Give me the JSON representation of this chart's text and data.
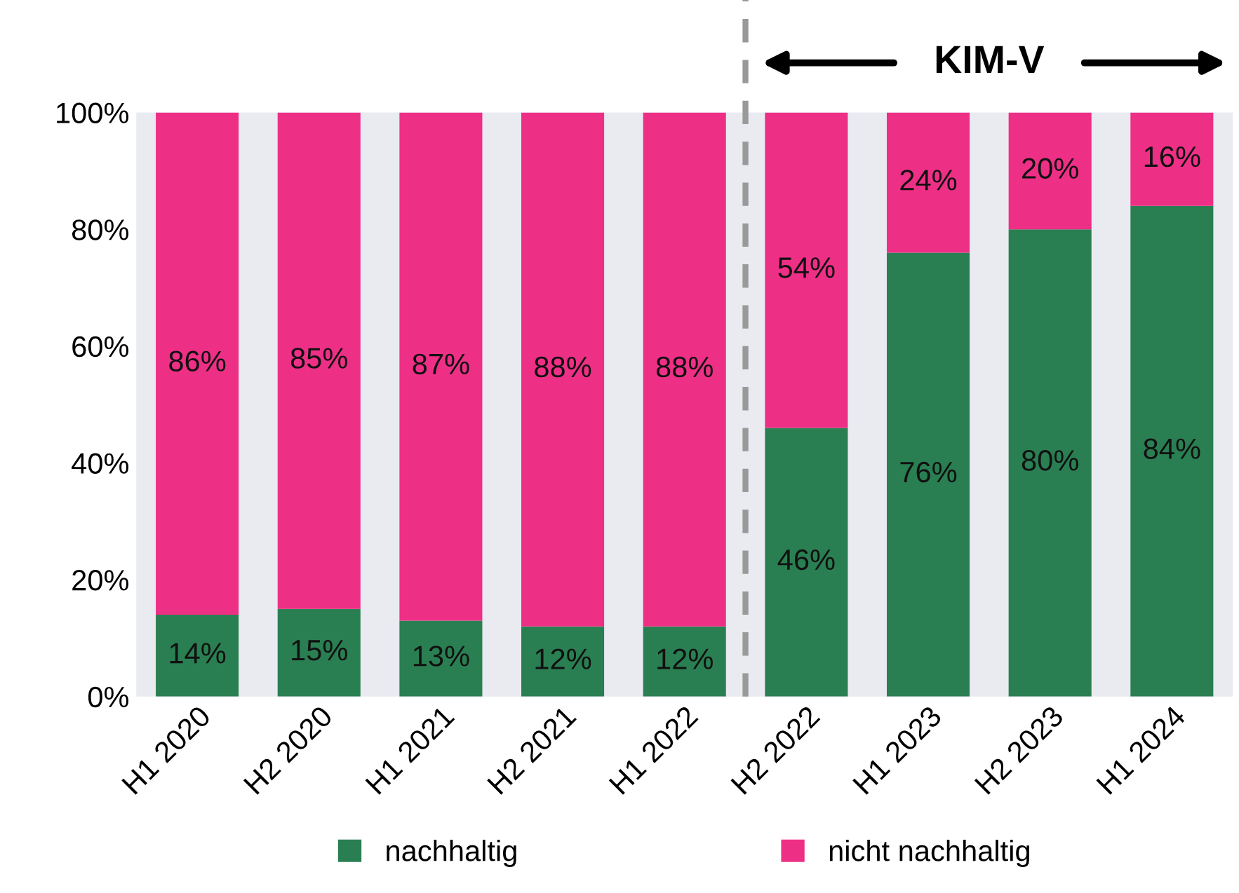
{
  "chart_data": {
    "type": "bar",
    "stacked": true,
    "categories": [
      "H1 2020",
      "H2 2020",
      "H1 2021",
      "H2 2021",
      "H1 2022",
      "H2 2022",
      "H1 2023",
      "H2 2023",
      "H1 2024"
    ],
    "series": [
      {
        "name": "nachhaltig",
        "color": "#2a7f52",
        "values": [
          14,
          15,
          13,
          12,
          12,
          46,
          76,
          80,
          84
        ],
        "value_labels": [
          "14%",
          "15%",
          "13%",
          "12%",
          "12%",
          "46%",
          "76%",
          "80%",
          "84%"
        ]
      },
      {
        "name": "nicht nachhaltig",
        "color": "#ee2f86",
        "values": [
          86,
          85,
          87,
          88,
          88,
          54,
          24,
          20,
          16
        ],
        "value_labels": [
          "86%",
          "85%",
          "87%",
          "88%",
          "88%",
          "54%",
          "24%",
          "20%",
          "16%"
        ]
      }
    ],
    "ylim": [
      0,
      100
    ],
    "yticks": [
      {
        "value": 0,
        "label": "0%"
      },
      {
        "value": 20,
        "label": "20%"
      },
      {
        "value": 40,
        "label": "40%"
      },
      {
        "value": 60,
        "label": "60%"
      },
      {
        "value": 80,
        "label": "80%"
      },
      {
        "value": 100,
        "label": "100%"
      }
    ],
    "annotations": [
      "KIM-V"
    ],
    "grid": false,
    "legend": "bottom"
  }
}
